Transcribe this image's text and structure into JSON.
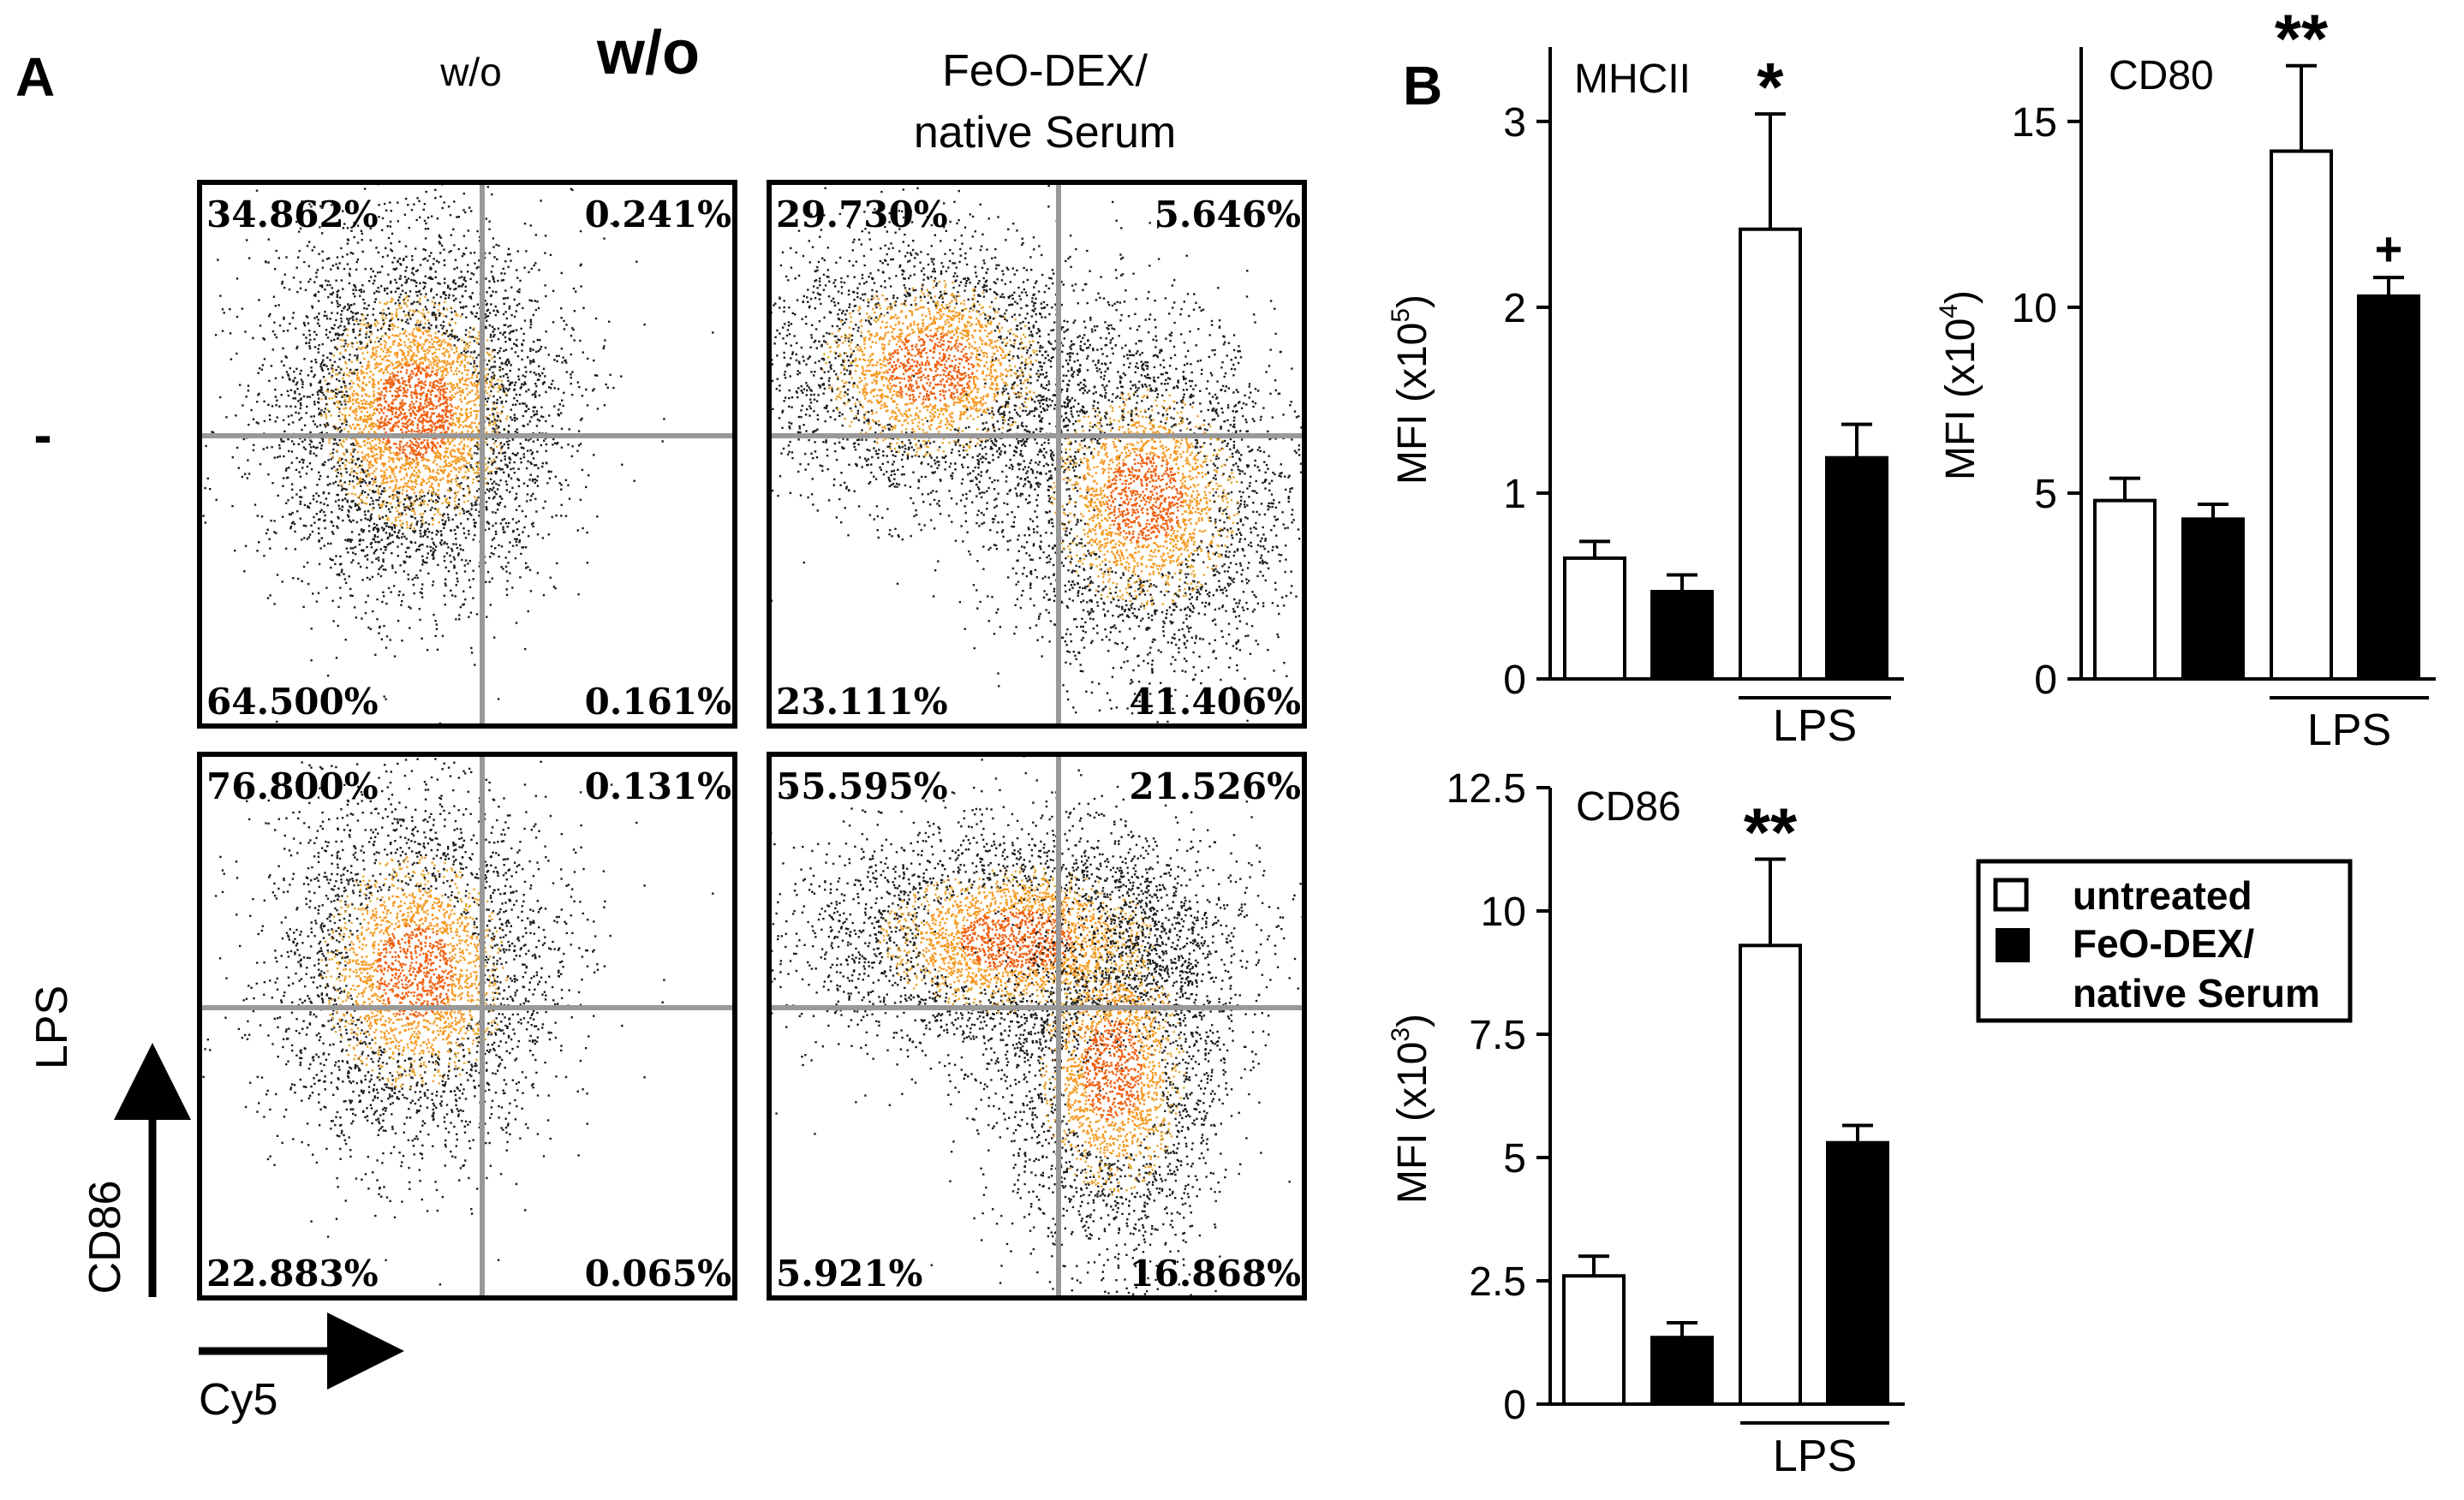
{
  "panel_a": {
    "label": "A",
    "column_headers": [
      "w/o",
      "w/o",
      "FeO-DEX/",
      "native Serum"
    ],
    "row_labels": [
      "-",
      "LPS"
    ],
    "y_axis_label": "CD86",
    "x_axis_label": "Cy5",
    "plots": [
      {
        "row": "-",
        "column": "w/o",
        "quadrants": {
          "upper_left": "34.862%",
          "upper_right": "0.241%",
          "lower_left": "64.500%",
          "lower_right": "0.161%"
        }
      },
      {
        "row": "-",
        "column": "FeO-DEX/native Serum",
        "quadrants": {
          "upper_left": "29.730%",
          "upper_right": "5.646%",
          "lower_left": "23.111%",
          "lower_right": "41.406%"
        }
      },
      {
        "row": "LPS",
        "column": "w/o",
        "quadrants": {
          "upper_left": "76.800%",
          "upper_right": "0.131%",
          "lower_left": "22.883%",
          "lower_right": "0.065%"
        }
      },
      {
        "row": "LPS",
        "column": "FeO-DEX/native Serum",
        "quadrants": {
          "upper_left": "55.595%",
          "upper_right": "21.526%",
          "lower_left": "5.921%",
          "lower_right": "16.868%"
        }
      }
    ]
  },
  "panel_b": {
    "label": "B",
    "legend": {
      "entries": [
        {
          "label": "untreated",
          "color": "#ffffff"
        },
        {
          "label": "FeO-DEX/",
          "color": "#000000"
        },
        {
          "label": "native Serum",
          "color": "#000000"
        }
      ]
    }
  },
  "chart_data": [
    {
      "type": "bar",
      "title": "MHCII",
      "ylabel": "MFI (x10",
      "ylabel_exp": "5",
      "ylabel_end": ")",
      "ylim": [
        0,
        3.4
      ],
      "yticks": [
        0,
        1,
        2,
        3
      ],
      "ytick_labels": [
        "0",
        "1",
        "2",
        "3"
      ],
      "categories": [
        "untreated",
        "FeO-DEX/native Serum",
        "LPS untreated",
        "LPS FeO-DEX/native Serum"
      ],
      "values": [
        0.65,
        0.47,
        2.42,
        1.19
      ],
      "errors": [
        0.09,
        0.09,
        0.62,
        0.18
      ],
      "colors": [
        "#ffffff",
        "#000000",
        "#ffffff",
        "#000000"
      ],
      "group_label": "LPS",
      "annotations": [
        "",
        "",
        "*",
        ""
      ]
    },
    {
      "type": "bar",
      "title": "CD80",
      "ylabel": "MFI (x10",
      "ylabel_exp": "4",
      "ylabel_end": ")",
      "ylim": [
        0,
        17
      ],
      "yticks": [
        0,
        5,
        10,
        15
      ],
      "ytick_labels": [
        "0",
        "5",
        "10",
        "15"
      ],
      "categories": [
        "untreated",
        "FeO-DEX/native Serum",
        "LPS untreated",
        "LPS FeO-DEX/native Serum"
      ],
      "values": [
        4.8,
        4.3,
        14.2,
        10.3
      ],
      "errors": [
        0.6,
        0.4,
        2.3,
        0.5
      ],
      "colors": [
        "#ffffff",
        "#000000",
        "#ffffff",
        "#000000"
      ],
      "group_label": "LPS",
      "annotations": [
        "",
        "",
        "**",
        "+"
      ]
    },
    {
      "type": "bar",
      "title": "CD86",
      "ylabel": "MFI (x10",
      "ylabel_exp": "3",
      "ylabel_end": ")",
      "ylim": [
        0,
        12.5
      ],
      "yticks": [
        0,
        2.5,
        5,
        7.5,
        10,
        12.5
      ],
      "ytick_labels": [
        "0",
        "2.5",
        "5",
        "7.5",
        "10",
        "12.5"
      ],
      "categories": [
        "untreated",
        "FeO-DEX/native Serum",
        "LPS untreated",
        "LPS FeO-DEX/native Serum"
      ],
      "values": [
        2.6,
        1.35,
        9.3,
        5.3
      ],
      "errors": [
        0.4,
        0.3,
        1.75,
        0.35
      ],
      "colors": [
        "#ffffff",
        "#000000",
        "#ffffff",
        "#000000"
      ],
      "group_label": "LPS",
      "annotations": [
        "",
        "",
        "**",
        ""
      ]
    }
  ]
}
